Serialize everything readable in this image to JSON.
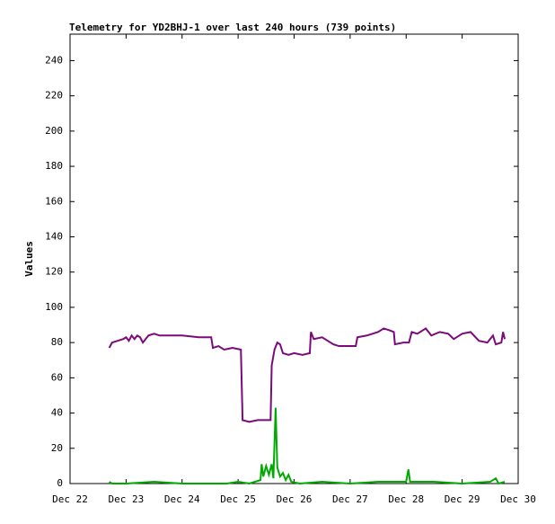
{
  "chart_data": {
    "type": "line",
    "title": "Telemetry for YD2BHJ-1 over last 240 hours (739 points)",
    "y_label": "Values",
    "xlim": [
      22,
      30
    ],
    "xticks": [
      {
        "value": 22,
        "label": "Dec 22"
      },
      {
        "value": 23,
        "label": "Dec 23"
      },
      {
        "value": 24,
        "label": "Dec 24"
      },
      {
        "value": 25,
        "label": "Dec 25"
      },
      {
        "value": 26,
        "label": "Dec 26"
      },
      {
        "value": 27,
        "label": "Dec 27"
      },
      {
        "value": 28,
        "label": "Dec 28"
      },
      {
        "value": 29,
        "label": "Dec 29"
      },
      {
        "value": 30,
        "label": "Dec 30"
      }
    ],
    "ylim": [
      0,
      255
    ],
    "yticks": [
      0,
      20,
      40,
      60,
      80,
      100,
      120,
      140,
      160,
      180,
      200,
      220,
      240
    ],
    "grid": false,
    "series": [
      {
        "color": "#7b0a7b",
        "x": [
          22.7,
          22.75,
          22.85,
          22.95,
          23.0,
          23.05,
          23.1,
          23.15,
          23.2,
          23.25,
          23.3,
          23.4,
          23.5,
          23.6,
          24.0,
          24.3,
          24.52,
          24.55,
          24.65,
          24.75,
          24.9,
          25.05,
          25.08,
          25.2,
          25.35,
          25.5,
          25.58,
          25.6,
          25.65,
          25.7,
          25.75,
          25.8,
          25.9,
          26.0,
          26.15,
          26.28,
          26.3,
          26.35,
          26.5,
          26.6,
          26.7,
          26.8,
          27.0,
          27.1,
          27.13,
          27.3,
          27.5,
          27.6,
          27.7,
          27.78,
          27.8,
          27.95,
          28.05,
          28.1,
          28.2,
          28.35,
          28.45,
          28.6,
          28.75,
          28.85,
          29.0,
          29.15,
          29.3,
          29.45,
          29.55,
          29.6,
          29.7,
          29.73,
          29.76
        ],
        "values": [
          77,
          80,
          81,
          82,
          83,
          81,
          84,
          82,
          84,
          83,
          80,
          84,
          85,
          84,
          84,
          83,
          83,
          77,
          78,
          76,
          77,
          76,
          36,
          35,
          36,
          36,
          36,
          67,
          76,
          80,
          79,
          74,
          73,
          74,
          73,
          74,
          86,
          82,
          83,
          81,
          79,
          78,
          78,
          78,
          83,
          84,
          86,
          88,
          87,
          86,
          79,
          80,
          80,
          86,
          85,
          88,
          84,
          86,
          85,
          82,
          85,
          86,
          81,
          80,
          84,
          79,
          80,
          86,
          82
        ]
      },
      {
        "color": "#00aa00",
        "x": [
          22.7,
          22.75,
          23.0,
          23.5,
          24.0,
          24.8,
          25.0,
          25.2,
          25.4,
          25.42,
          25.45,
          25.5,
          25.55,
          25.6,
          25.63,
          25.67,
          25.7,
          25.75,
          25.8,
          25.85,
          25.9,
          25.95,
          26.1,
          26.5,
          27.0,
          27.5,
          28.0,
          28.04,
          28.07,
          28.5,
          29.0,
          29.5,
          29.6,
          29.65,
          29.76
        ],
        "values": [
          1,
          0,
          0,
          1,
          0,
          0,
          1,
          0,
          2,
          11,
          4,
          10,
          5,
          11,
          3,
          43,
          9,
          4,
          6,
          2,
          5,
          1,
          0,
          1,
          0,
          1,
          1,
          8,
          1,
          1,
          0,
          1,
          3,
          0,
          1
        ]
      }
    ]
  }
}
